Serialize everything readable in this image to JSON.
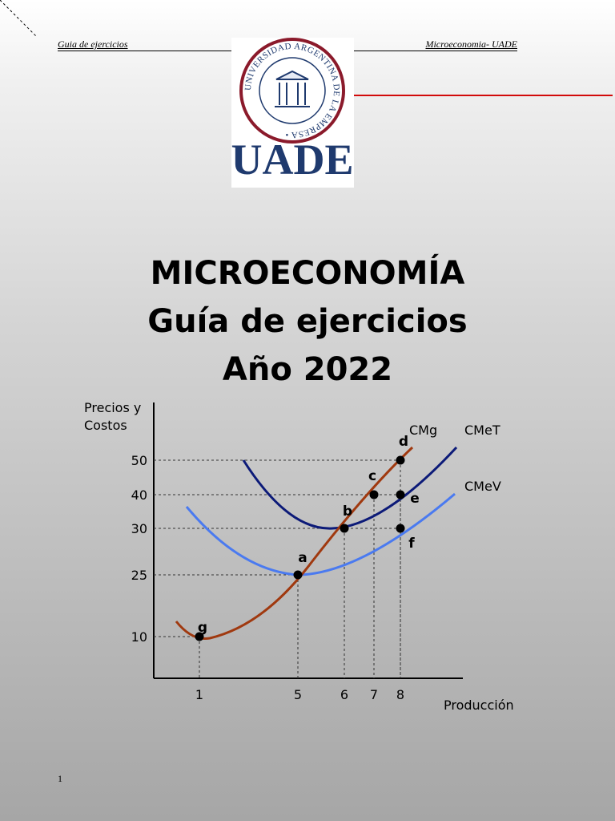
{
  "header": {
    "left": "Guia de ejercicios",
    "right": "Microeconomia- UADE"
  },
  "logo": {
    "seal_text": "UNIVERSIDAD ARGENTINA DE LA EMPRESA",
    "wordmark": "UADE",
    "wordmark_color": "#1f3a6e",
    "seal_color": "#8b1a2b"
  },
  "title": {
    "line1": "MICROECONOMÍA",
    "line2": "Guía de ejercicios",
    "line3": "Año 2022"
  },
  "page_number": "1",
  "chart_data": {
    "type": "line",
    "ylabel": "Precios y Costos",
    "xlabel": "Producción",
    "y_ticks": [
      10,
      25,
      30,
      40,
      50
    ],
    "x_ticks": [
      1,
      5,
      6,
      7,
      8
    ],
    "series": [
      {
        "name": "CMg",
        "color": "#a0390f"
      },
      {
        "name": "CMeT",
        "color": "#0c1a78"
      },
      {
        "name": "CMeV",
        "color": "#4a7af0"
      }
    ],
    "points": [
      {
        "label": "g",
        "x": 1,
        "y": 10
      },
      {
        "label": "a",
        "x": 5,
        "y": 25
      },
      {
        "label": "b",
        "x": 6,
        "y": 30
      },
      {
        "label": "c",
        "x": 7,
        "y": 40
      },
      {
        "label": "d",
        "x": 8,
        "y": 50
      },
      {
        "label": "e",
        "x": 8,
        "y": 40
      },
      {
        "label": "f",
        "x": 8,
        "y": 30
      }
    ]
  }
}
